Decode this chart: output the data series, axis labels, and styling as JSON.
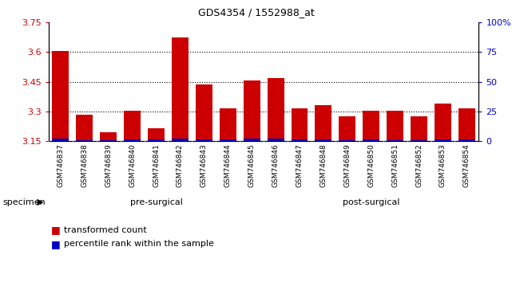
{
  "title": "GDS4354 / 1552988_at",
  "samples": [
    "GSM746837",
    "GSM746838",
    "GSM746839",
    "GSM746840",
    "GSM746841",
    "GSM746842",
    "GSM746843",
    "GSM746844",
    "GSM746845",
    "GSM746846",
    "GSM746847",
    "GSM746848",
    "GSM746849",
    "GSM746850",
    "GSM746851",
    "GSM746852",
    "GSM746853",
    "GSM746854"
  ],
  "red_values": [
    3.605,
    3.285,
    3.195,
    3.305,
    3.215,
    3.675,
    3.435,
    3.315,
    3.455,
    3.47,
    3.315,
    3.33,
    3.275,
    3.305,
    3.305,
    3.275,
    3.34,
    3.315
  ],
  "blue_values": [
    0.012,
    0.006,
    0.006,
    0.008,
    0.008,
    0.014,
    0.008,
    0.01,
    0.012,
    0.012,
    0.008,
    0.008,
    0.006,
    0.008,
    0.006,
    0.006,
    0.008,
    0.008
  ],
  "ymin": 3.15,
  "ymax": 3.75,
  "yticks": [
    3.15,
    3.3,
    3.45,
    3.6,
    3.75
  ],
  "ytick_labels": [
    "3.15",
    "3.3",
    "3.45",
    "3.6",
    "3.75"
  ],
  "right_yticks": [
    0,
    25,
    50,
    75,
    100
  ],
  "right_ytick_labels": [
    "0",
    "25",
    "50",
    "75",
    "100%"
  ],
  "grid_lines": [
    3.3,
    3.45,
    3.6
  ],
  "pre_surgical_count": 9,
  "post_surgical_count": 9,
  "pre_surgical_label": "pre-surgical",
  "post_surgical_label": "post-surgical",
  "pre_color": "#aaddaa",
  "post_color": "#44cc44",
  "bar_color_red": "#cc0000",
  "bar_color_blue": "#0000cc",
  "bar_width": 0.7,
  "legend_items": [
    {
      "label": "transformed count",
      "color": "#cc0000"
    },
    {
      "label": "percentile rank within the sample",
      "color": "#0000cc"
    }
  ],
  "specimen_label": "specimen",
  "tick_label_color_left": "#cc0000",
  "tick_label_color_right": "#0000cc",
  "background_color": "#ffffff",
  "plot_bg_color": "#ffffff",
  "xticklabel_bg": "#cccccc"
}
